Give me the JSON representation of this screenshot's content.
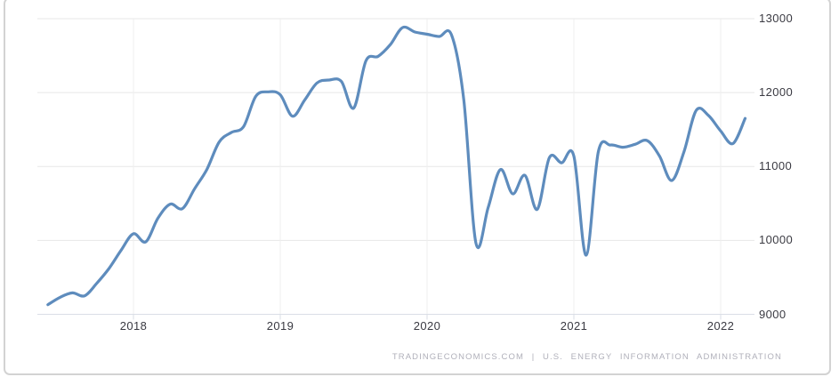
{
  "chart_data": {
    "type": "line",
    "title": "",
    "x": [
      "2017-06",
      "2017-07",
      "2017-08",
      "2017-09",
      "2017-10",
      "2017-11",
      "2017-12",
      "2018-01",
      "2018-02",
      "2018-03",
      "2018-04",
      "2018-05",
      "2018-06",
      "2018-07",
      "2018-08",
      "2018-09",
      "2018-10",
      "2018-11",
      "2018-12",
      "2019-01",
      "2019-02",
      "2019-03",
      "2019-04",
      "2019-05",
      "2019-06",
      "2019-07",
      "2019-08",
      "2019-09",
      "2019-10",
      "2019-11",
      "2019-12",
      "2020-01",
      "2020-02",
      "2020-03",
      "2020-04",
      "2020-05",
      "2020-06",
      "2020-07",
      "2020-08",
      "2020-09",
      "2020-10",
      "2020-11",
      "2020-12",
      "2021-01",
      "2021-02",
      "2021-03",
      "2021-04",
      "2021-05",
      "2021-06",
      "2021-07",
      "2021-08",
      "2021-09",
      "2021-10",
      "2021-11",
      "2021-12",
      "2022-01",
      "2022-02",
      "2022-03"
    ],
    "values": [
      9130,
      9230,
      9290,
      9250,
      9420,
      9620,
      9870,
      10090,
      9980,
      10300,
      10490,
      10430,
      10700,
      10960,
      11330,
      11460,
      11540,
      11950,
      12010,
      11970,
      11680,
      11900,
      12130,
      12170,
      12150,
      11790,
      12430,
      12490,
      12650,
      12880,
      12820,
      12790,
      12760,
      12780,
      11900,
      9960,
      10450,
      10960,
      10630,
      10880,
      10420,
      11120,
      11050,
      11140,
      9800,
      11200,
      11290,
      11260,
      11300,
      11350,
      11140,
      10810,
      11200,
      11760,
      11690,
      11480,
      11310,
      11650
    ],
    "x_tick_labels": [
      "2018",
      "2019",
      "2020",
      "2021",
      "2022"
    ],
    "y_tick_labels": [
      "13000",
      "12000",
      "11000",
      "10000",
      "9000"
    ],
    "y_ticks": [
      13000,
      12000,
      11000,
      10000,
      9000
    ],
    "ylim": [
      9000,
      13000
    ],
    "grid": true,
    "legend": false,
    "line_color": "#5e8cbd",
    "grid_color_h": "#e7e7e7",
    "grid_color_v": "#efefef",
    "axis_color": "#dadee6",
    "attribution": "TRADINGECONOMICS.COM | U.S. ENERGY INFORMATION ADMINISTRATION"
  }
}
